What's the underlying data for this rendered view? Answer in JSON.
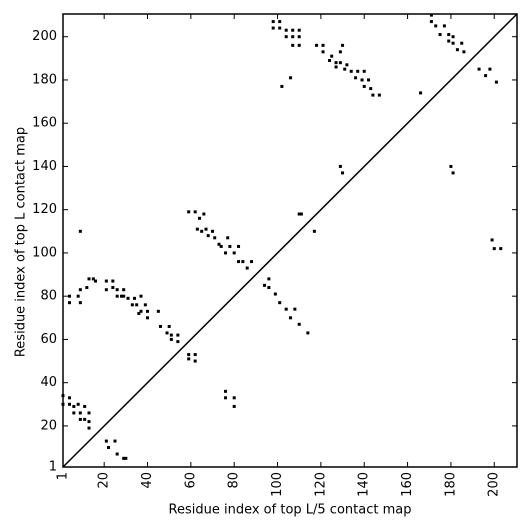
{
  "chart_data": {
    "type": "scatter",
    "xlabel": "Residue index of top L/5 contact map",
    "ylabel": "Residue index of top L contact map",
    "xlim": [
      1,
      210.5
    ],
    "ylim": [
      1,
      210.5
    ],
    "xticks": [
      1,
      20,
      40,
      60,
      80,
      100,
      120,
      140,
      160,
      180,
      200
    ],
    "yticks": [
      1,
      20,
      40,
      60,
      80,
      100,
      120,
      140,
      160,
      180,
      200
    ],
    "diagonal": true,
    "color": "#000000",
    "x": [
      98,
      98,
      101,
      101,
      104,
      104,
      107,
      107,
      107,
      110,
      110,
      110,
      102,
      106,
      118,
      121,
      121,
      124,
      125,
      127,
      127,
      129,
      129,
      130,
      131,
      132,
      134,
      136,
      137,
      139,
      140,
      140,
      142,
      143,
      144,
      147,
      166,
      129,
      130,
      59,
      62,
      64,
      66,
      63,
      65,
      67,
      68,
      70,
      71,
      73,
      74,
      76,
      77,
      78,
      80,
      82,
      82,
      84,
      86,
      88,
      110,
      111,
      117,
      171,
      171,
      173,
      175,
      177,
      179,
      179,
      181,
      181,
      183,
      185,
      186,
      180,
      181,
      193,
      196,
      198,
      201,
      199,
      200,
      203,
      94,
      96,
      96,
      99,
      101,
      104,
      106,
      108,
      110,
      114,
      9,
      4,
      4,
      8,
      9,
      9,
      12,
      13,
      15,
      16,
      21,
      21,
      24,
      24,
      26,
      26,
      28,
      29,
      29,
      31,
      33,
      34,
      35,
      36,
      37,
      37,
      39,
      40,
      40,
      45,
      46,
      49,
      50,
      51,
      51,
      54,
      54,
      59,
      59,
      62,
      62,
      76,
      76,
      80,
      80,
      1,
      1,
      4,
      4,
      6,
      6,
      8,
      9,
      9,
      11,
      13,
      13,
      13,
      11,
      21,
      22,
      25,
      26,
      29,
      30
    ],
    "values": [
      207,
      204,
      207,
      204,
      200,
      203,
      196,
      200,
      203,
      196,
      200,
      203,
      177,
      181,
      196,
      196,
      193,
      189,
      191,
      188,
      186,
      193,
      188,
      196,
      185,
      187,
      184,
      181,
      184,
      180,
      184,
      177,
      180,
      176,
      173,
      173,
      174,
      140,
      137,
      119,
      119,
      116,
      118,
      111,
      110,
      111,
      108,
      110,
      107,
      104,
      103,
      100,
      107,
      103,
      100,
      96,
      103,
      96,
      93,
      96,
      118,
      118,
      110,
      210,
      207,
      205,
      201,
      205,
      198,
      201,
      197,
      200,
      194,
      197,
      193,
      140,
      137,
      185,
      182,
      185,
      179,
      106,
      102,
      102,
      85,
      88,
      84,
      81,
      77,
      74,
      70,
      74,
      67,
      63,
      110,
      80,
      77,
      80,
      83,
      77,
      84,
      88,
      88,
      87,
      87,
      83,
      87,
      84,
      80,
      83,
      80,
      83,
      80,
      79,
      76,
      79,
      76,
      72,
      80,
      73,
      76,
      73,
      70,
      73,
      66,
      63,
      66,
      62,
      60,
      59,
      62,
      53,
      51,
      50,
      53,
      36,
      33,
      33,
      29,
      34,
      30,
      30,
      33,
      29,
      26,
      30,
      26,
      23,
      29,
      26,
      22,
      19,
      23,
      13,
      10,
      13,
      7,
      5,
      5
    ]
  }
}
